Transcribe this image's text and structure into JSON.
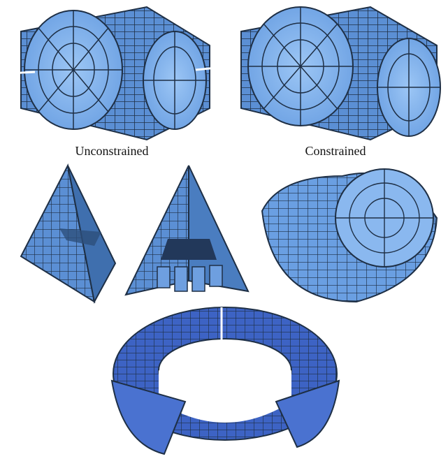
{
  "figure": {
    "captions": {
      "unconstrained": "Unconstrained",
      "constrained": "Constrained"
    },
    "colors": {
      "block_fill": "#5b8fd4",
      "block_light": "#8ab8ef",
      "block_dark": "#2d4f7a",
      "edge": "#1e2f45",
      "torus_fill": "#3d63c4",
      "torus_light": "#6e92e6"
    }
  }
}
